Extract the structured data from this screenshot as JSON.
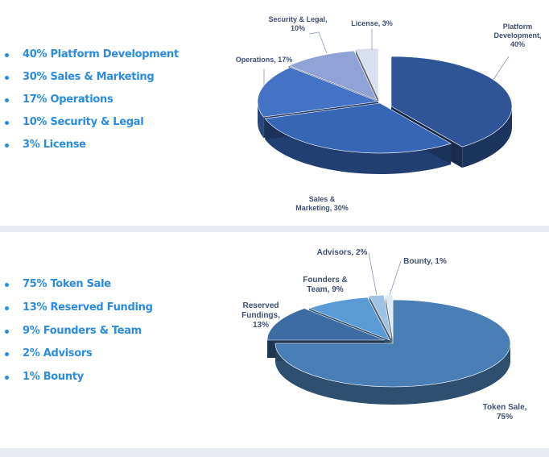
{
  "chart_data": [
    {
      "type": "pie",
      "legend_items": [
        "40% Platform Development",
        "30% Sales & Marketing",
        "17% Operations",
        "10% Security & Legal",
        "3% License"
      ],
      "slices": [
        {
          "label_lines": [
            "Platform",
            "Development,",
            "40%"
          ],
          "value": 40,
          "color": "#2f5597"
        },
        {
          "label_lines": [
            "Sales &",
            "Marketing, 30%"
          ],
          "value": 30,
          "color": "#3666b4"
        },
        {
          "label_lines": [
            "Operations, 17%"
          ],
          "value": 17,
          "color": "#4472c4"
        },
        {
          "label_lines": [
            "Security & Legal,",
            "10%"
          ],
          "value": 10,
          "color": "#8fa3d6"
        },
        {
          "label_lines": [
            "License, 3%"
          ],
          "value": 3,
          "color": "#d9e0ef"
        }
      ]
    },
    {
      "type": "pie",
      "legend_items": [
        "75% Token Sale",
        "13% Reserved Funding",
        "9% Founders & Team",
        "2% Advisors",
        "1% Bounty"
      ],
      "slices": [
        {
          "label_lines": [
            "Token Sale,",
            "75%"
          ],
          "value": 75,
          "color": "#4a7fb5"
        },
        {
          "label_lines": [
            "Reserved",
            "Fundings,",
            "13%"
          ],
          "value": 13,
          "color": "#3d6ca3"
        },
        {
          "label_lines": [
            "Founders &",
            "Team, 9%"
          ],
          "value": 9,
          "color": "#5b9bd5"
        },
        {
          "label_lines": [
            "Advisors, 2%"
          ],
          "value": 2,
          "color": "#9dc3e6"
        },
        {
          "label_lines": [
            "Bounty, 1%"
          ],
          "value": 1,
          "color": "#deebf7"
        }
      ]
    }
  ]
}
